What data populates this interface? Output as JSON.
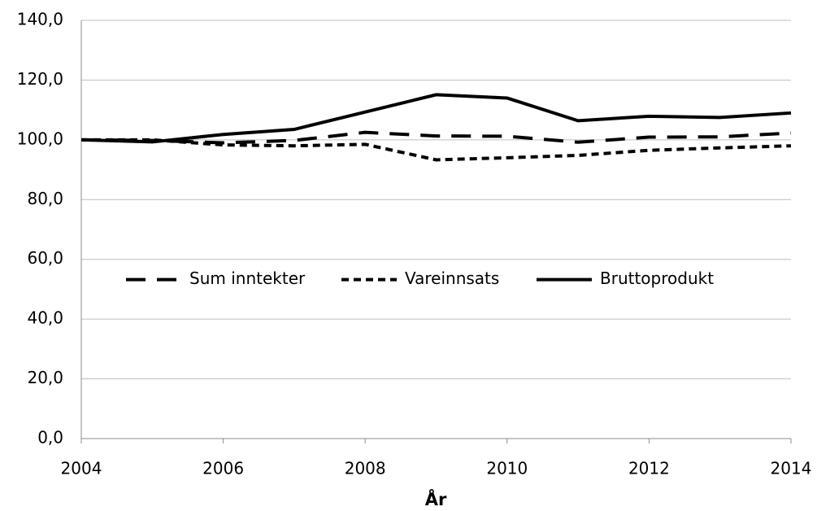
{
  "chart_data": {
    "type": "line",
    "x_label": "År",
    "x": [
      2004,
      2005,
      2006,
      2007,
      2008,
      2009,
      2010,
      2011,
      2012,
      2013,
      2014
    ],
    "series": [
      {
        "name": "Sum inntekter",
        "color": "#000000",
        "dash": "long",
        "values": [
          100,
          99.8,
          99.0,
          99.8,
          102.5,
          101.3,
          101.2,
          99.2,
          100.9,
          101.0,
          102.3
        ]
      },
      {
        "name": "Vareinnsats",
        "color": "#000000",
        "dash": "short",
        "values": [
          100,
          100.0,
          98.3,
          98.0,
          98.5,
          93.3,
          94.0,
          94.8,
          96.5,
          97.3,
          98.0
        ]
      },
      {
        "name": "Bruttoprodukt",
        "color": "#000000",
        "dash": "solid",
        "values": [
          100,
          99.3,
          101.8,
          103.5,
          109.3,
          115.1,
          114.0,
          106.4,
          107.9,
          107.5,
          109.0
        ]
      }
    ],
    "xlim": [
      2004,
      2014
    ],
    "xticks": [
      2004,
      2006,
      2008,
      2010,
      2012,
      2014
    ],
    "ylim": [
      0,
      140
    ],
    "yticks": [
      {
        "value": 0,
        "label": "0,0"
      },
      {
        "value": 20,
        "label": "20,0"
      },
      {
        "value": 40,
        "label": "40,0"
      },
      {
        "value": 60,
        "label": "60,0"
      },
      {
        "value": 80,
        "label": "80,0"
      },
      {
        "value": 100,
        "label": "100,0"
      },
      {
        "value": 120,
        "label": "120,0"
      },
      {
        "value": 140,
        "label": "140,0"
      }
    ],
    "grid": true,
    "legend": "center"
  }
}
